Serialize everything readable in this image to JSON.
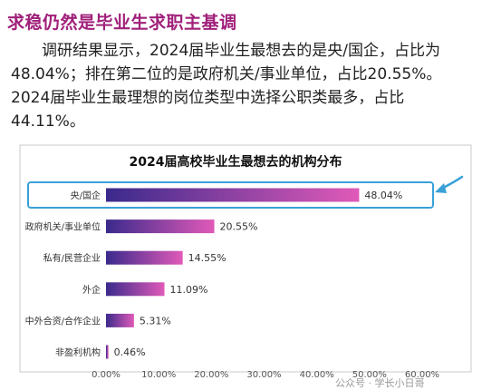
{
  "article": {
    "heading": "求稳仍然是毕业生求职主基调",
    "paragraph": "调研结果显示，2024届毕业生最想去的是央/国企，占比为48.04%；排在第二位的是政府机关/事业单位，占比20.55%。2024届毕业生最理想的岗位类型中选择公职类最多，占比44.11%。"
  },
  "watermark": "公众号 · 学长小日哥",
  "colors": {
    "heading": "#a0207a",
    "bar_start": "#3a2a8c",
    "bar_end": "#e05ab8",
    "highlight_border": "#3aa0d8"
  },
  "chart_data": {
    "type": "bar",
    "orientation": "horizontal",
    "title": "2024届高校毕业生最想去的机构分布",
    "categories": [
      "央/国企",
      "政府机关/事业单位",
      "私有/民营企业",
      "外企",
      "中外合资/合作企业",
      "非盈利机构"
    ],
    "values": [
      48.04,
      20.55,
      14.55,
      11.09,
      5.31,
      0.46
    ],
    "value_labels": [
      "48.04%",
      "20.55%",
      "14.55%",
      "11.09%",
      "5.31%",
      "0.46%"
    ],
    "xlim": [
      0,
      60
    ],
    "xticks": [
      0,
      10,
      20,
      30,
      40,
      50,
      60
    ],
    "xtick_labels": [
      "0.00%",
      "10.00%",
      "20.00%",
      "30.00%",
      "40.00%",
      "50.00%",
      "60.00%"
    ],
    "highlighted_category": "央/国企",
    "grid": false,
    "legend": "none"
  }
}
